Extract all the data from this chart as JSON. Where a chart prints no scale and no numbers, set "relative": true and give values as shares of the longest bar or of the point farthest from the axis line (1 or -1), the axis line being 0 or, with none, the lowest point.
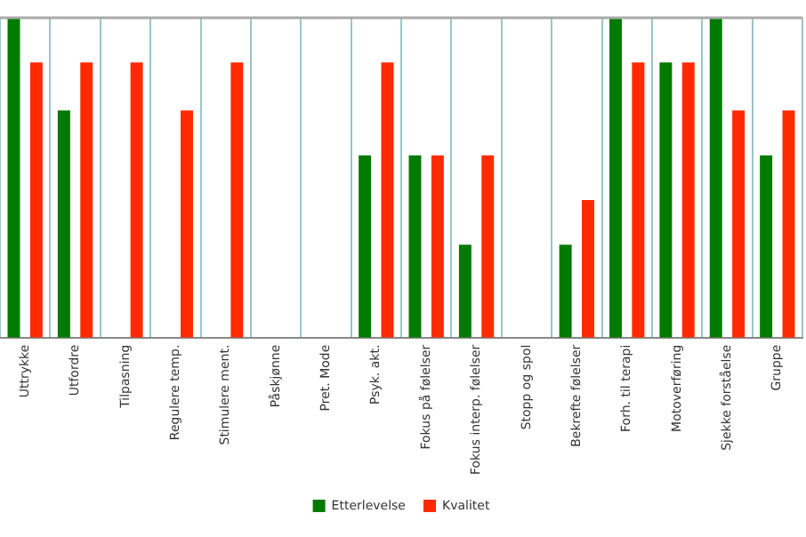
{
  "chart_data": {
    "type": "bar",
    "relative": true,
    "categories": [
      "Uttrykke",
      "Utfordre",
      "Tilpasning",
      "Regulere temp.",
      "Stimulere ment.",
      "Påskjønne",
      "Pret. Mode",
      "Psyk. akt.",
      "Fokus på følelser",
      "Fokus interp. følelser",
      "Stopp og spol",
      "Bekrefte følelser",
      "Forh. til terapi",
      "Motoverføring",
      "Sjekke forståelse",
      "Gruppe"
    ],
    "series": [
      {
        "name": "Etterlevelse",
        "color": "#007a00",
        "values": [
          1,
          0.71,
          0,
          0,
          0,
          0,
          0,
          0.57,
          0.57,
          0.29,
          0,
          0.29,
          1,
          0.86,
          1,
          0.57
        ]
      },
      {
        "name": "Kvalitet",
        "color": "#ff2a00",
        "values": [
          0.86,
          0.86,
          0.86,
          0.71,
          0.86,
          0,
          0,
          0.86,
          0.57,
          0.57,
          0,
          0.43,
          0.86,
          0.86,
          0.71,
          0.71
        ]
      }
    ],
    "grid": "x",
    "legend": "bottom"
  }
}
